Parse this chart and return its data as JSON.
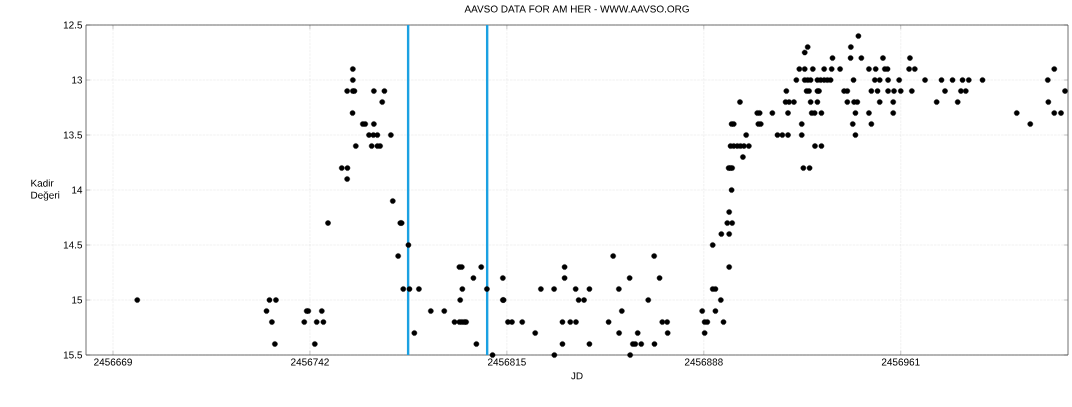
{
  "chart_data": {
    "type": "scatter",
    "title": "AAVSO DATA FOR AM HER - WWW.AAVSO.ORG",
    "xlabel": "JD",
    "ylabel": "Kadir Değeri",
    "x": [
      2456678.0,
      2456727.0,
      2456729.4,
      2456725.9,
      2456727.9,
      2456729.0,
      2456740.8,
      2456741.4,
      2456739.9,
      2456744.5,
      2456747.0,
      2456746.4,
      2456743.8,
      2456748.7,
      2456753.8,
      2456755.9,
      2456755.8,
      2456757.9,
      2456757.9,
      2456755.8,
      2456757.9,
      2456758.5,
      2456757.8,
      2456759.0,
      2456761.6,
      2456762.5,
      2456765.7,
      2456769.6,
      2456768.8,
      2456765.7,
      2456763.9,
      2456765.5,
      2456767.0,
      2456764.9,
      2456767.0,
      2456768.0,
      2456772.0,
      2456772.7,
      2456775.5,
      2456776.0,
      2456778.5,
      2456774.7,
      2456776.6,
      2456778.9,
      2456782.4,
      2456780.7,
      2456786.8,
      2456791.8,
      2456795.6,
      2456797.4,
      2456798.3,
      2456799.2,
      2456799.9,
      2456797.7,
      2456797.4,
      2456798.3,
      2456798.5,
      2456802.6,
      2456803.7,
      2456805.5,
      2456807.6,
      2456809.7,
      2456813.5,
      2456813.5,
      2456813.8,
      2456815.4,
      2456816.9,
      2456820.7,
      2456825.5,
      2456827.6,
      2456832.5,
      2456832.6,
      2456835.6,
      2456835.6,
      2456836.4,
      2456836.4,
      2456838.5,
      2456840.6,
      2456840.5,
      2456841.6,
      2456843.6,
      2456845.6,
      2456845.6,
      2456852.7,
      2456854.4,
      2456856.5,
      2456856.6,
      2456857.6,
      2456860.5,
      2456860.7,
      2456861.7,
      2456862.6,
      2456863.5,
      2456864.8,
      2456867.4,
      2456869.6,
      2456869.7,
      2456871.6,
      2456872.6,
      2456874.4,
      2456874.6,
      2456887.4,
      2456888.3,
      2456889.3,
      2456888.3,
      2456892.3,
      2456895.3,
      2456891.3,
      2456892.3,
      2456894.3,
      2456891.3,
      2456897.4,
      2456894.5,
      2456897.4,
      2456896.7,
      2456898.5,
      2456897.4,
      2456898.3,
      2456897.2,
      2456897.8,
      2456898.5,
      2456897.9,
      2456899.1,
      2456900.4,
      2456901.6,
      2456902.9,
      2456904.7,
      2456902.5,
      2456903.7,
      2456898.3,
      2456899.1,
      2456901.4,
      2456907.8,
      2456908.7,
      2456908.2,
      2456909.1,
      2456913.4,
      2456915.3,
      2456917.1,
      2456919.2,
      2456918.6,
      2456918.3,
      2456919.6,
      2456921.4,
      2456919.2,
      2456922.3,
      2456923.4,
      2456925.4,
      2456928.4,
      2456924.3,
      2456924.3,
      2456924.9,
      2456927.2,
      2456925.4,
      2456926.5,
      2456925.4,
      2456926.5,
      2456927.6,
      2456926.1,
      2456927.0,
      2456930.1,
      2456930.7,
      2456927.6,
      2456930.1,
      2456928.0,
      2456929.1,
      2456931.6,
      2456929.2,
      2456931.6,
      2456930.1,
      2456931.3,
      2456932.6,
      2456933.8,
      2456935.0,
      2456932.6,
      2456935.4,
      2456938.5,
      2456935.7,
      2456940.0,
      2456941.2,
      2456941.2,
      2456943.7,
      2456944.9,
      2456943.5,
      2456942.5,
      2456942.4,
      2456945.3,
      2456946.4,
      2456944.2,
      2456943.2,
      2456944.2,
      2456949.2,
      2456950.1,
      2456949.2,
      2456951.7,
      2456950.1,
      2456952.4,
      2456951.4,
      2456953.2,
      2456953.2,
      2456954.4,
      2456955.1,
      2456956.1,
      2456956.3,
      2456956.3,
      2456958.2,
      2456958.2,
      2456958.5,
      2456960.4,
      2456961.0,
      2456964.4,
      2456964.1,
      2456966.2,
      2456965.1,
      2456970.0,
      2456974.3,
      2456976.1,
      2456977.4,
      2456980.2,
      2456982.1,
      2456983.3,
      2456985.1,
      2456983.9,
      2456986.2,
      2456991.3,
      2457004.0,
      2457009.0,
      2457015.5,
      2457015.7,
      2457017.9,
      2457017.9,
      2457020.4,
      2457021.9
    ],
    "values": [
      15.0,
      15.0,
      15.0,
      15.1,
      15.2,
      15.4,
      15.1,
      15.1,
      15.2,
      15.2,
      15.2,
      15.1,
      15.4,
      14.3,
      13.8,
      13.8,
      13.9,
      12.9,
      13.0,
      13.1,
      13.1,
      13.1,
      13.3,
      13.6,
      13.4,
      13.4,
      13.1,
      13.1,
      13.2,
      13.4,
      13.5,
      13.5,
      13.5,
      13.6,
      13.6,
      13.6,
      13.5,
      14.1,
      14.3,
      14.3,
      14.5,
      14.6,
      14.9,
      14.9,
      14.9,
      15.3,
      15.1,
      15.1,
      15.2,
      15.2,
      15.2,
      15.2,
      15.2,
      15.0,
      14.7,
      14.7,
      14.9,
      14.8,
      15.4,
      14.7,
      14.9,
      15.5,
      14.8,
      15.0,
      15.0,
      15.2,
      15.2,
      15.2,
      15.3,
      14.9,
      14.9,
      15.5,
      15.2,
      15.4,
      14.7,
      14.8,
      15.2,
      15.2,
      14.9,
      15.0,
      15.0,
      14.9,
      15.4,
      15.2,
      14.6,
      14.9,
      15.3,
      15.1,
      14.8,
      15.5,
      15.4,
      15.4,
      15.3,
      15.4,
      15.0,
      14.6,
      15.4,
      14.8,
      15.2,
      15.2,
      15.3,
      15.1,
      15.2,
      15.2,
      15.3,
      15.1,
      15.2,
      14.9,
      14.9,
      15.0,
      14.5,
      14.7,
      14.4,
      14.4,
      14.3,
      14.3,
      14.2,
      14.0,
      13.8,
      13.8,
      13.8,
      13.6,
      13.6,
      13.6,
      13.6,
      13.6,
      13.6,
      13.7,
      13.5,
      13.4,
      13.4,
      13.2,
      13.3,
      13.3,
      13.4,
      13.4,
      13.3,
      13.5,
      13.5,
      13.5,
      13.1,
      13.2,
      13.2,
      13.2,
      13.3,
      13.0,
      12.9,
      12.9,
      12.9,
      13.4,
      13.5,
      13.8,
      13.8,
      12.75,
      12.7,
      13.0,
      13.0,
      13.0,
      13.1,
      13.1,
      13.1,
      13.1,
      13.2,
      13.2,
      13.3,
      13.3,
      13.3,
      13.6,
      13.6,
      13.0,
      13.0,
      13.0,
      13.0,
      13.0,
      12.9,
      12.9,
      12.9,
      12.8,
      13.1,
      13.1,
      13.2,
      13.2,
      13.2,
      13.0,
      12.7,
      12.8,
      12.6,
      12.8,
      13.3,
      13.4,
      13.5,
      13.3,
      13.4,
      12.9,
      12.9,
      13.1,
      13.1,
      13.0,
      13.2,
      13.0,
      12.8,
      12.9,
      12.9,
      13.0,
      13.1,
      13.2,
      13.3,
      13.1,
      13.0,
      13.1,
      12.8,
      12.9,
      12.9,
      13.1,
      13.0,
      13.2,
      13.0,
      13.1,
      13.0,
      13.2,
      13.1,
      13.1,
      13.0,
      13.0,
      13.0,
      13.3,
      13.4,
      13.0,
      13.2,
      12.9,
      13.3,
      13.3,
      13.1
    ],
    "color": "#000000",
    "grid": true,
    "xlim": [
      2456659,
      2457023
    ],
    "ylim": [
      15.5,
      12.5
    ],
    "xticks": [
      2456669,
      2456742,
      2456815,
      2456888,
      2456961
    ],
    "yticks": [
      12.5,
      13,
      13.5,
      14,
      14.5,
      15,
      15.5
    ],
    "ref_lines": [
      {
        "axis": "x",
        "value": 2456778.4,
        "color": "#1ba1e2"
      },
      {
        "axis": "x",
        "value": 2456807.7,
        "color": "#1ba1e2"
      }
    ]
  }
}
